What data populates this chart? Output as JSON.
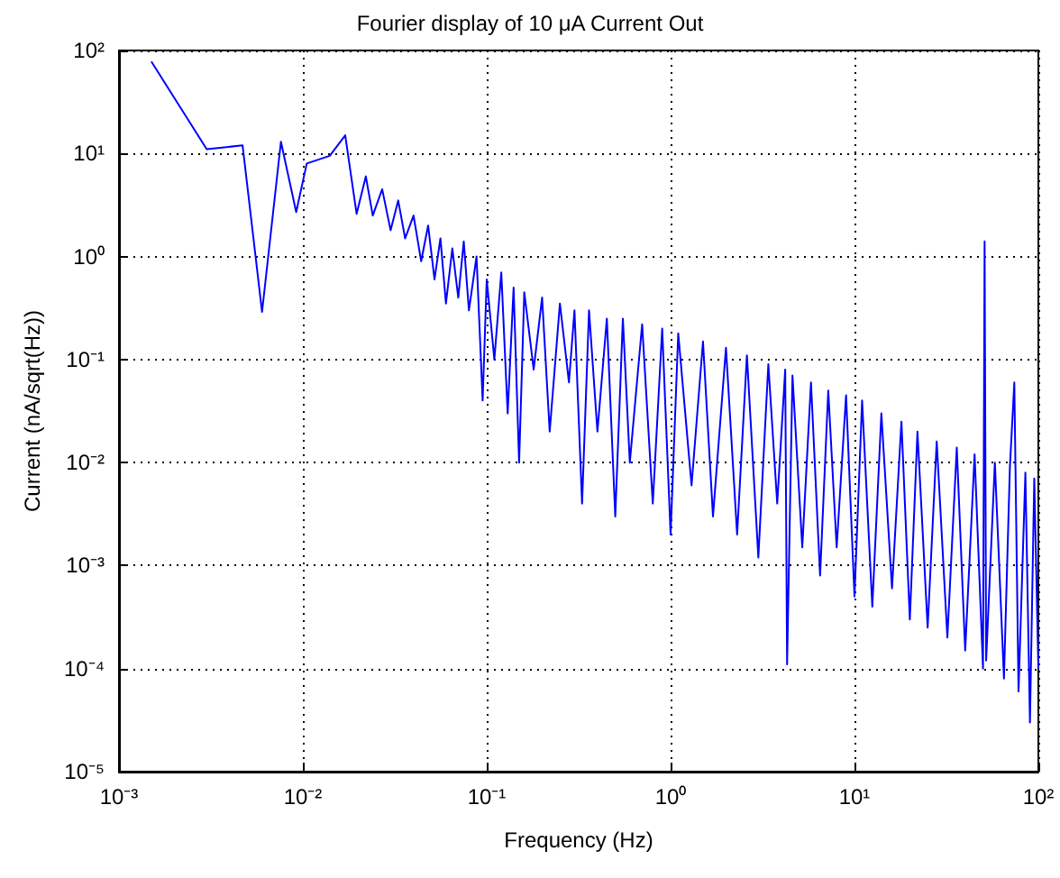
{
  "chart_data": {
    "type": "line",
    "title": "Fourier display of 10 μA Current Out",
    "xlabel": "Frequency (Hz)",
    "ylabel": "Current (nA/sqrt(Hz))",
    "log": "xy",
    "grid": true,
    "marker": "none",
    "line_style": "solid",
    "xlim": [
      0.001,
      100
    ],
    "ylim": [
      1e-05,
      100
    ],
    "xticks": [
      {
        "value": 0.001,
        "label": "10⁻³"
      },
      {
        "value": 0.01,
        "label": "10⁻²"
      },
      {
        "value": 0.1,
        "label": "10⁻¹"
      },
      {
        "value": 1,
        "label": "10⁰"
      },
      {
        "value": 10,
        "label": "10¹"
      },
      {
        "value": 100,
        "label": "10²"
      }
    ],
    "yticks": [
      {
        "value": 1e-05,
        "label": "10⁻⁵"
      },
      {
        "value": 0.0001,
        "label": "10⁻⁴"
      },
      {
        "value": 0.001,
        "label": "10⁻³"
      },
      {
        "value": 0.01,
        "label": "10⁻²"
      },
      {
        "value": 0.1,
        "label": "10⁻¹"
      },
      {
        "value": 1,
        "label": "10⁰"
      },
      {
        "value": 10,
        "label": "10¹"
      },
      {
        "value": 100,
        "label": "10²"
      }
    ],
    "series": [
      {
        "color": "#0000ff",
        "x": [
          0.0015,
          0.003,
          0.0047,
          0.006,
          0.0076,
          0.0092,
          0.0105,
          0.014,
          0.017,
          0.0196,
          0.022,
          0.024,
          0.027,
          0.03,
          0.033,
          0.036,
          0.04,
          0.044,
          0.048,
          0.052,
          0.056,
          0.06,
          0.065,
          0.07,
          0.075,
          0.08,
          0.088,
          0.095,
          0.1,
          0.11,
          0.12,
          0.13,
          0.14,
          0.15,
          0.16,
          0.18,
          0.2,
          0.22,
          0.25,
          0.28,
          0.3,
          0.33,
          0.36,
          0.4,
          0.45,
          0.5,
          0.55,
          0.6,
          0.7,
          0.8,
          0.9,
          1.0,
          1.1,
          1.3,
          1.5,
          1.7,
          2.0,
          2.3,
          2.6,
          3.0,
          3.4,
          3.8,
          4.2,
          4.3,
          4.6,
          5.2,
          5.8,
          6.5,
          7.2,
          8.0,
          9.0,
          10,
          11,
          12.5,
          14,
          16,
          18,
          20,
          22,
          25,
          28,
          32,
          36,
          40,
          45,
          50,
          51,
          52,
          58,
          65,
          70,
          74,
          78,
          85,
          90,
          95,
          100
        ],
        "values": [
          78,
          11,
          12,
          0.29,
          13,
          2.7,
          8,
          9.5,
          15,
          2.6,
          6,
          2.5,
          4.5,
          1.8,
          3.5,
          1.5,
          2.5,
          0.9,
          2.0,
          0.6,
          1.5,
          0.35,
          1.2,
          0.4,
          1.4,
          0.3,
          1.0,
          0.04,
          0.6,
          0.1,
          0.7,
          0.03,
          0.5,
          0.01,
          0.45,
          0.08,
          0.4,
          0.02,
          0.35,
          0.06,
          0.3,
          0.004,
          0.3,
          0.02,
          0.25,
          0.003,
          0.25,
          0.01,
          0.22,
          0.004,
          0.2,
          0.002,
          0.18,
          0.006,
          0.15,
          0.003,
          0.13,
          0.002,
          0.11,
          0.0012,
          0.09,
          0.004,
          0.08,
          0.00011,
          0.07,
          0.0015,
          0.06,
          0.0008,
          0.05,
          0.0015,
          0.045,
          0.0005,
          0.04,
          0.0004,
          0.03,
          0.0006,
          0.025,
          0.0003,
          0.02,
          0.00025,
          0.016,
          0.0002,
          0.014,
          0.00015,
          0.012,
          0.0001,
          1.4,
          0.00012,
          0.01,
          8e-05,
          0.009,
          0.06,
          6e-05,
          0.008,
          3e-05,
          0.007,
          0.0001
        ]
      }
    ]
  }
}
